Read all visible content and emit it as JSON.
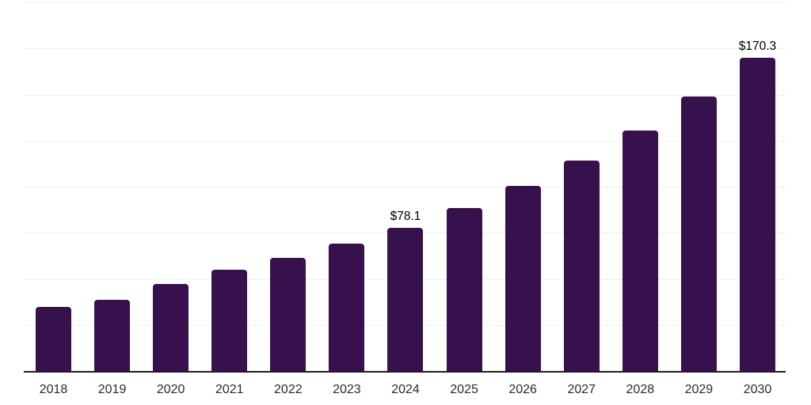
{
  "chart_data": {
    "type": "bar",
    "categories": [
      "2018",
      "2019",
      "2020",
      "2021",
      "2022",
      "2023",
      "2024",
      "2025",
      "2026",
      "2027",
      "2028",
      "2029",
      "2030"
    ],
    "values": [
      35.2,
      39.0,
      47.6,
      55.4,
      61.8,
      69.5,
      78.1,
      88.8,
      100.8,
      114.5,
      130.8,
      149.2,
      170.3
    ],
    "labeled_points": [
      {
        "category": "2024",
        "label": "$78.1"
      },
      {
        "category": "2030",
        "label": "$170.3"
      }
    ],
    "title": "",
    "xlabel": "",
    "ylabel": "",
    "ylim": [
      0,
      200
    ],
    "grid_step": 25,
    "grid": true,
    "legend": "none",
    "colors": {
      "bar": "#36114d",
      "grid": "#f0f0f2",
      "axis_line": "#1d1d1d",
      "tick_label": "#2b2b2b",
      "value_label": "#000000"
    }
  }
}
